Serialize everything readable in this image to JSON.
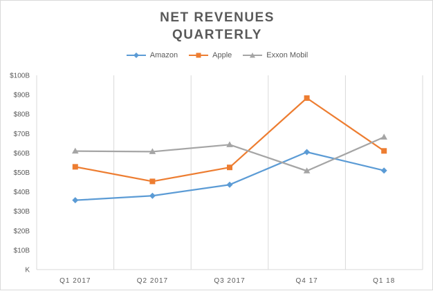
{
  "chart_data": {
    "type": "line",
    "title_lines": [
      "NET REVENUES",
      "QUARTERLY"
    ],
    "categories": [
      "Q1 2017",
      "Q2 2017",
      "Q3 2017",
      "Q4 17",
      "Q1 18"
    ],
    "series": [
      {
        "name": "Amazon",
        "color": "#5b9bd5",
        "marker": "diamond",
        "values": [
          35.7,
          38.0,
          43.7,
          60.5,
          51.0
        ]
      },
      {
        "name": "Apple",
        "color": "#ed7d31",
        "marker": "square",
        "values": [
          52.9,
          45.4,
          52.6,
          88.3,
          61.1
        ]
      },
      {
        "name": "Exxon Mobil",
        "color": "#a5a5a5",
        "marker": "triangle",
        "values": [
          61.0,
          60.7,
          64.3,
          50.8,
          68.2
        ]
      }
    ],
    "y_ticks": [
      "K",
      "$10B",
      "$20B",
      "$30B",
      "$40B",
      "$50B",
      "$60B",
      "$70B",
      "$80B",
      "$90B",
      "$100B"
    ],
    "ylim": [
      0,
      100
    ],
    "xlabel": "",
    "ylabel": "",
    "grid": "vertical",
    "legend_position": "top"
  }
}
